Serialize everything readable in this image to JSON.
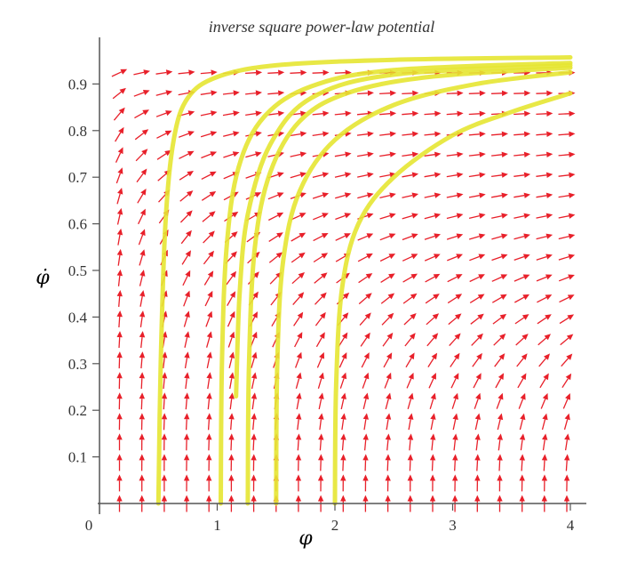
{
  "chart_data": {
    "type": "vector-field",
    "title": "inverse square power-law potential",
    "xlabel": "φ",
    "ylabel": "φ̇",
    "xlim": [
      0,
      4.1
    ],
    "ylim": [
      0,
      0.97
    ],
    "x_ticks": [
      "0",
      "1",
      "2",
      "3",
      "4"
    ],
    "y_ticks": [
      "0.1",
      "0.2",
      "0.3",
      "0.4",
      "0.5",
      "0.6",
      "0.7",
      "0.8",
      "0.9"
    ],
    "field_color": "#e8202a",
    "trajectory_color": "#e6e632",
    "field_grid": {
      "x_start": 0.17,
      "x_step": 0.19,
      "x_count": 21,
      "y_start": 0.0,
      "y_step": 0.044,
      "y_count": 22
    },
    "trajectories": [
      {
        "name": "",
        "points": [
          [
            0.5,
            0.0
          ],
          [
            0.52,
            0.3
          ],
          [
            0.56,
            0.6
          ],
          [
            0.63,
            0.78
          ],
          [
            0.75,
            0.87
          ],
          [
            1.0,
            0.915
          ],
          [
            1.5,
            0.94
          ],
          [
            2.5,
            0.952
          ],
          [
            4.0,
            0.957
          ]
        ]
      },
      {
        "name": "",
        "points": [
          [
            1.03,
            0.0
          ],
          [
            1.04,
            0.3
          ],
          [
            1.08,
            0.55
          ],
          [
            1.18,
            0.72
          ],
          [
            1.4,
            0.83
          ],
          [
            1.8,
            0.895
          ],
          [
            2.5,
            0.93
          ],
          [
            4.0,
            0.945
          ]
        ]
      },
      {
        "name": "",
        "points": [
          [
            1.16,
            0.23
          ],
          [
            1.19,
            0.45
          ],
          [
            1.26,
            0.62
          ],
          [
            1.45,
            0.77
          ],
          [
            1.8,
            0.87
          ],
          [
            2.5,
            0.92
          ],
          [
            4.0,
            0.94
          ]
        ]
      },
      {
        "name": "",
        "points": [
          [
            1.26,
            0.0
          ],
          [
            1.27,
            0.3
          ],
          [
            1.32,
            0.55
          ],
          [
            1.45,
            0.71
          ],
          [
            1.7,
            0.82
          ],
          [
            2.1,
            0.88
          ],
          [
            2.8,
            0.915
          ],
          [
            4.0,
            0.935
          ]
        ]
      },
      {
        "name": "",
        "points": [
          [
            1.5,
            0.0
          ],
          [
            1.51,
            0.3
          ],
          [
            1.56,
            0.52
          ],
          [
            1.7,
            0.67
          ],
          [
            2.0,
            0.78
          ],
          [
            2.5,
            0.855
          ],
          [
            3.2,
            0.9
          ],
          [
            4.0,
            0.925
          ]
        ]
      },
      {
        "name": "",
        "points": [
          [
            2.0,
            0.0
          ],
          [
            2.01,
            0.25
          ],
          [
            2.06,
            0.46
          ],
          [
            2.2,
            0.6
          ],
          [
            2.5,
            0.7
          ],
          [
            3.0,
            0.79
          ],
          [
            3.5,
            0.84
          ],
          [
            4.0,
            0.88
          ]
        ]
      }
    ]
  }
}
